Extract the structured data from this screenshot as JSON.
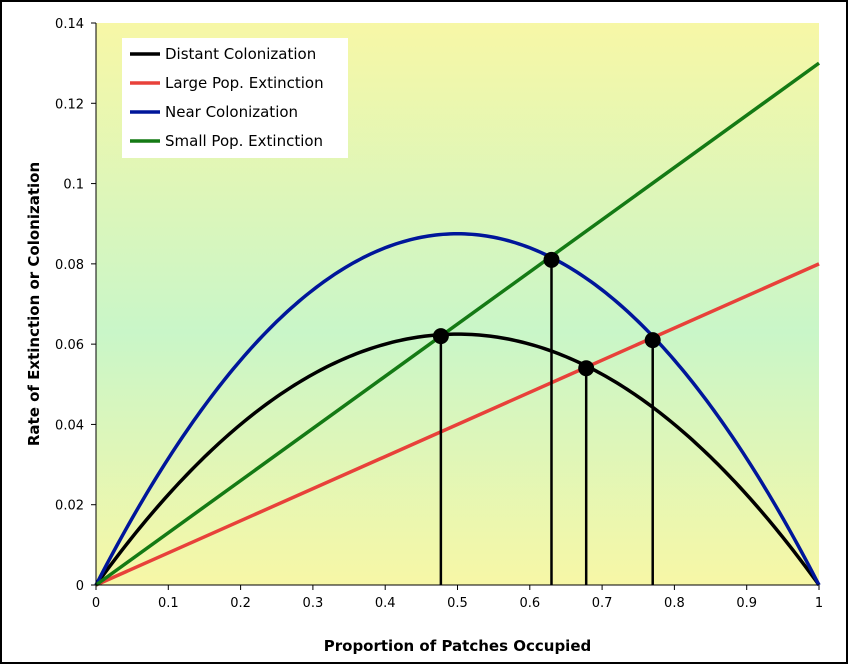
{
  "chart_data": {
    "type": "line",
    "title": "",
    "xlabel": "Proportion of Patches Occupied",
    "ylabel": "Rate of Extinction or Colonization",
    "xlim": [
      0,
      1
    ],
    "ylim": [
      0,
      0.14
    ],
    "x_ticks": [
      "0",
      "0.1",
      "0.2",
      "0.3",
      "0.4",
      "0.5",
      "0.6",
      "0.7",
      "0.8",
      "0.9",
      "1"
    ],
    "y_ticks": [
      "0",
      "0.02",
      "0.04",
      "0.06",
      "0.08",
      "0.1",
      "0.12",
      "0.14"
    ],
    "grid": false,
    "legend_position": "top-left",
    "background": {
      "gradient_top": "#f7f7a6",
      "gradient_middle": "#c9f6c8",
      "gradient_bottom": "#f7f7a6"
    },
    "series": [
      {
        "name": "Distant Colonization",
        "kind": "parabola",
        "color": "#000000",
        "peak_x": 0.5,
        "peak_y": 0.0625,
        "x_domain": [
          0,
          1
        ]
      },
      {
        "name": "Large Pop. Extinction",
        "kind": "linear",
        "color": "#e8413a",
        "x": [
          0,
          1
        ],
        "y": [
          0,
          0.08
        ]
      },
      {
        "name": "Near Colonization",
        "kind": "parabola",
        "color": "#00169a",
        "peak_x": 0.5,
        "peak_y": 0.0875,
        "x_domain": [
          0,
          1
        ]
      },
      {
        "name": "Small Pop. Extinction",
        "kind": "linear",
        "color": "#147a14",
        "x": [
          0,
          1
        ],
        "y": [
          0,
          0.13
        ]
      }
    ],
    "equilibrium_points": [
      {
        "x": 0.477,
        "y": 0.062
      },
      {
        "x": 0.63,
        "y": 0.081
      },
      {
        "x": 0.678,
        "y": 0.054
      },
      {
        "x": 0.77,
        "y": 0.061
      }
    ]
  }
}
